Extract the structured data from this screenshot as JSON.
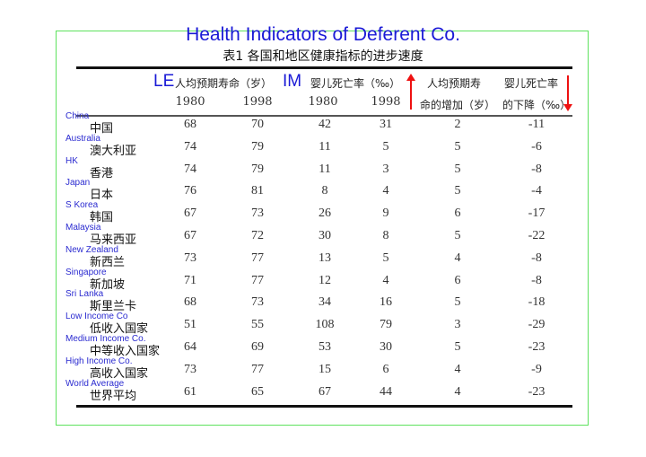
{
  "title": "Health Indicators of Deferent Co.",
  "subtitle": "表1  各国和地区健康指标的进步速度",
  "header": {
    "le_tag": "LE",
    "le_label": "人均预期寿命（岁）",
    "im_tag": "IM",
    "im_label": "婴儿死亡率（‰）",
    "le_increase_line1": "人均预期寿",
    "le_increase_line2": "命的增加（岁）",
    "im_decrease_line1": "婴儿死亡率",
    "im_decrease_line2": "的下降（‰）",
    "years": [
      "1980",
      "1998",
      "1980",
      "1998"
    ]
  },
  "colors": {
    "annotation": "#1a1ad6",
    "arrow": "#e11111",
    "frame": "#5ee25e"
  },
  "rows": [
    {
      "en": "China",
      "cn": "中国",
      "v": [
        "68",
        "70",
        "42",
        "31",
        "2",
        "-11"
      ]
    },
    {
      "en": "Australia",
      "cn": "澳大利亚",
      "v": [
        "74",
        "79",
        "11",
        "5",
        "5",
        "-6"
      ]
    },
    {
      "en": "HK",
      "cn": "香港",
      "v": [
        "74",
        "79",
        "11",
        "3",
        "5",
        "-8"
      ]
    },
    {
      "en": "Japan",
      "cn": "日本",
      "v": [
        "76",
        "81",
        "8",
        "4",
        "5",
        "-4"
      ]
    },
    {
      "en": "S Korea",
      "cn": "韩国",
      "v": [
        "67",
        "73",
        "26",
        "9",
        "6",
        "-17"
      ]
    },
    {
      "en": "Malaysia",
      "cn": "马来西亚",
      "v": [
        "67",
        "72",
        "30",
        "8",
        "5",
        "-22"
      ]
    },
    {
      "en": "New Zealand",
      "cn": "新西兰",
      "v": [
        "73",
        "77",
        "13",
        "5",
        "4",
        "-8"
      ]
    },
    {
      "en": "Singapore",
      "cn": "新加坡",
      "v": [
        "71",
        "77",
        "12",
        "4",
        "6",
        "-8"
      ]
    },
    {
      "en": "Sri Lanka",
      "cn": "斯里兰卡",
      "v": [
        "68",
        "73",
        "34",
        "16",
        "5",
        "-18"
      ]
    },
    {
      "en": "Low Income Co",
      "cn": "低收入国家",
      "v": [
        "51",
        "55",
        "108",
        "79",
        "3",
        "-29"
      ]
    },
    {
      "en": "Medium Income Co.",
      "cn": "中等收入国家",
      "v": [
        "64",
        "69",
        "53",
        "30",
        "5",
        "-23"
      ]
    },
    {
      "en": "High Income Co.",
      "cn": "高收入国家",
      "v": [
        "73",
        "77",
        "15",
        "6",
        "4",
        "-9"
      ]
    },
    {
      "en": "World Average",
      "cn": "世界平均",
      "v": [
        "61",
        "65",
        "67",
        "44",
        "4",
        "-23"
      ]
    }
  ]
}
